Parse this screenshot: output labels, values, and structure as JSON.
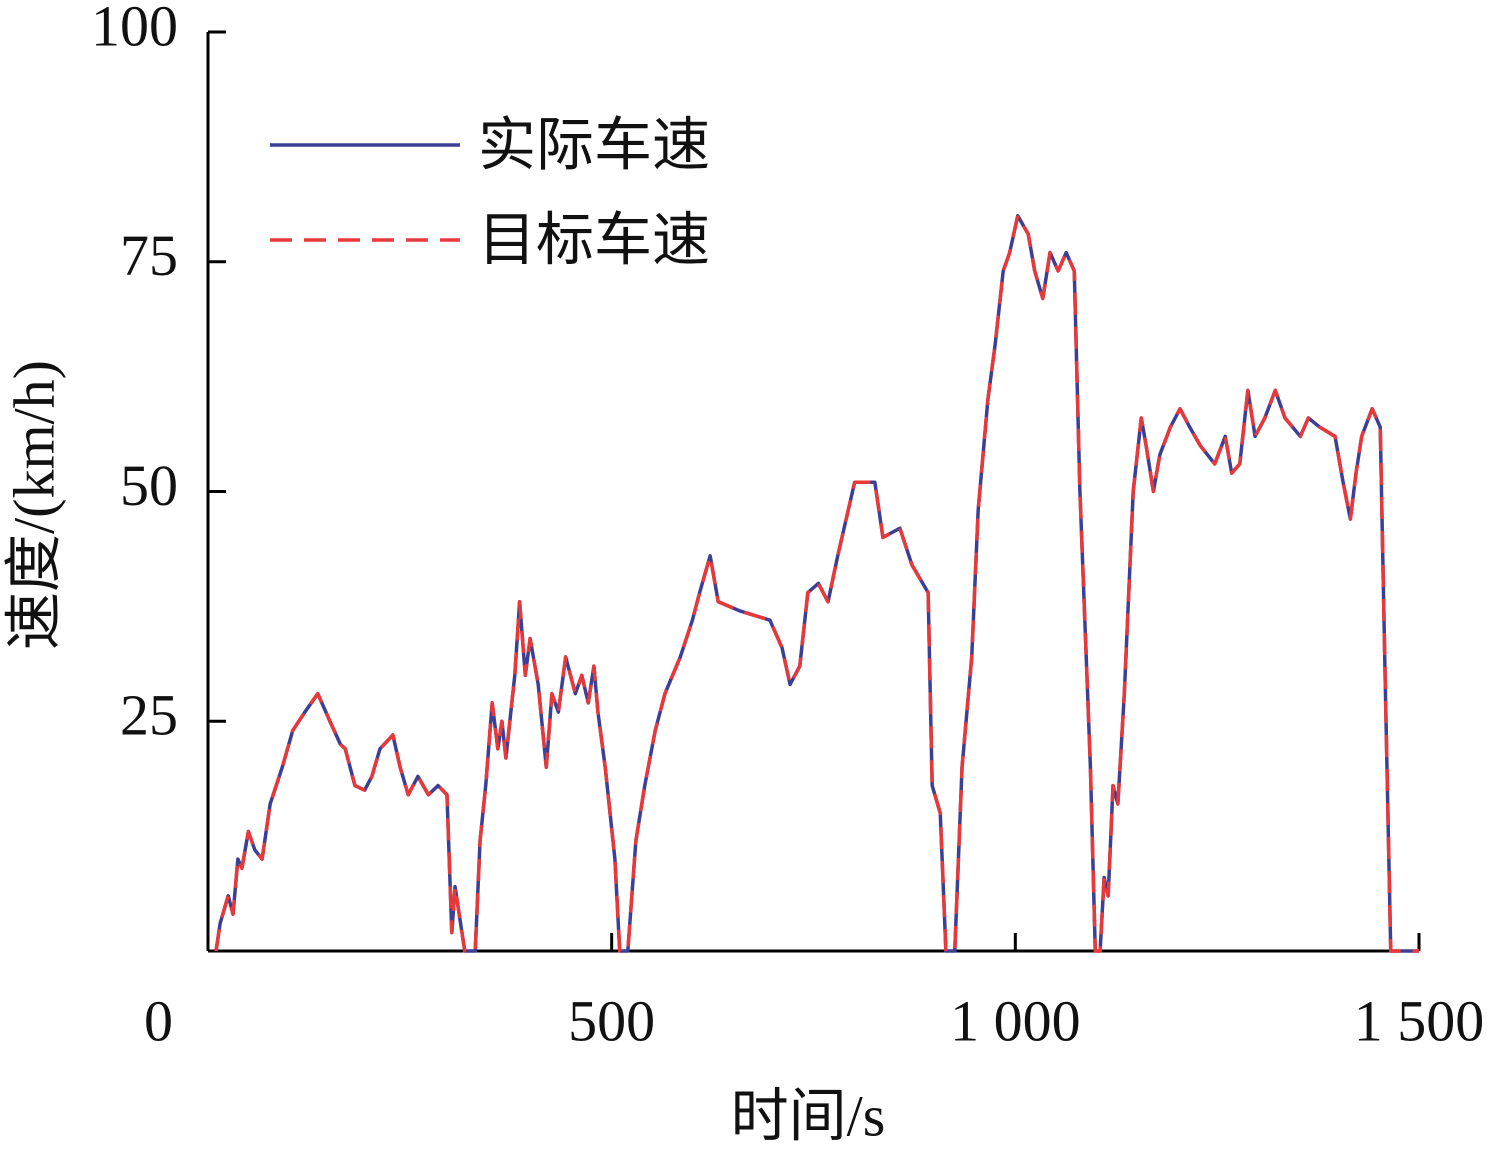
{
  "chart_data": {
    "type": "line",
    "xlabel": "时间/s",
    "ylabel": "速度/(km/h)",
    "x": [
      10,
      15,
      25,
      31,
      37,
      42,
      50,
      58,
      67,
      77,
      92,
      105,
      120,
      136,
      151,
      164,
      170,
      182,
      194,
      203,
      213,
      229,
      238,
      248,
      260,
      273,
      285,
      296,
      302,
      306,
      318,
      331,
      337,
      344,
      352,
      359,
      364,
      369,
      380,
      386,
      393,
      399,
      409,
      419,
      426,
      434,
      443,
      455,
      463,
      471,
      478,
      483,
      492,
      504,
      510,
      520,
      530,
      541,
      554,
      566,
      585,
      600,
      609,
      622,
      632,
      659,
      696,
      711,
      721,
      733,
      743,
      756,
      768,
      780,
      801,
      826,
      836,
      857,
      872,
      892,
      897,
      907,
      914,
      925,
      934,
      946,
      954,
      966,
      975,
      985,
      993,
      1003,
      1016,
      1024,
      1034,
      1043,
      1053,
      1063,
      1073,
      1080,
      1093,
      1099,
      1105,
      1110,
      1115,
      1121,
      1127,
      1135,
      1140,
      1146,
      1156,
      1162,
      1171,
      1179,
      1192,
      1204,
      1216,
      1229,
      1247,
      1260,
      1268,
      1278,
      1288,
      1297,
      1309,
      1322,
      1334,
      1353,
      1363,
      1377,
      1396,
      1406,
      1415,
      1422,
      1429,
      1442,
      1452,
      1458,
      1465,
      1500
    ],
    "series": [
      {
        "name": "实际车速",
        "color": "#3b3f96",
        "dash": false,
        "values": [
          0,
          3,
          6,
          4,
          10,
          9,
          13,
          11,
          10,
          16,
          20,
          24,
          26,
          28,
          25,
          22.5,
          22,
          18,
          17.5,
          19,
          22,
          23.5,
          20,
          17,
          19,
          17,
          18,
          17,
          2,
          7,
          0,
          0,
          12,
          18,
          27,
          22,
          25,
          21,
          30,
          38,
          30,
          34,
          29,
          20,
          28,
          26,
          32,
          28,
          30,
          27,
          31,
          26,
          20,
          10,
          0,
          0,
          12,
          18,
          24,
          28,
          32,
          36,
          39,
          43,
          38,
          37,
          36,
          33,
          29,
          31,
          39,
          40,
          38,
          43,
          51,
          51,
          45,
          46,
          42,
          39,
          18,
          15,
          0,
          0,
          20,
          32,
          48,
          60,
          66,
          74,
          76,
          80,
          78,
          74,
          71,
          76,
          74,
          76,
          74,
          50,
          20,
          0,
          0,
          8,
          6,
          18,
          16,
          28,
          38,
          50,
          58,
          55,
          50,
          54,
          57,
          59,
          57,
          55,
          53,
          56,
          52,
          53,
          61,
          56,
          58,
          61,
          58,
          56,
          58,
          57,
          56,
          51,
          47,
          52,
          56,
          59,
          57,
          30,
          0,
          0
        ]
      },
      {
        "name": "目标车速",
        "color": "#e8393a",
        "dash": true,
        "values": [
          0,
          3,
          6,
          4,
          10,
          9,
          13,
          11,
          10,
          16,
          20,
          24,
          26,
          28,
          25,
          22.5,
          22,
          18,
          17.5,
          19,
          22,
          23.5,
          20,
          17,
          19,
          17,
          18,
          17,
          2,
          7,
          0,
          0,
          12,
          18,
          27,
          22,
          25,
          21,
          30,
          38,
          30,
          34,
          29,
          20,
          28,
          26,
          32,
          28,
          30,
          27,
          31,
          26,
          20,
          10,
          0,
          0,
          12,
          18,
          24,
          28,
          32,
          36,
          39,
          43,
          38,
          37,
          36,
          33,
          29,
          31,
          39,
          40,
          38,
          43,
          51,
          51,
          45,
          46,
          42,
          39,
          18,
          15,
          0,
          0,
          20,
          32,
          48,
          60,
          66,
          74,
          76,
          80,
          78,
          74,
          71,
          76,
          74,
          76,
          74,
          50,
          20,
          0,
          0,
          8,
          6,
          18,
          16,
          28,
          38,
          50,
          58,
          55,
          50,
          54,
          57,
          59,
          57,
          55,
          53,
          56,
          52,
          53,
          61,
          56,
          58,
          61,
          58,
          56,
          58,
          57,
          56,
          51,
          47,
          52,
          56,
          59,
          57,
          30,
          0,
          0
        ]
      }
    ],
    "xlim": [
      0,
      1500
    ],
    "xticks": [
      0,
      500,
      {
        "value": 1000,
        "label": "1 000"
      },
      {
        "value": 1500,
        "label": "1 500"
      }
    ],
    "ylim": [
      0,
      100
    ],
    "yticks": [
      25,
      50,
      75,
      100
    ],
    "legend": "upper left",
    "grid": false
  }
}
